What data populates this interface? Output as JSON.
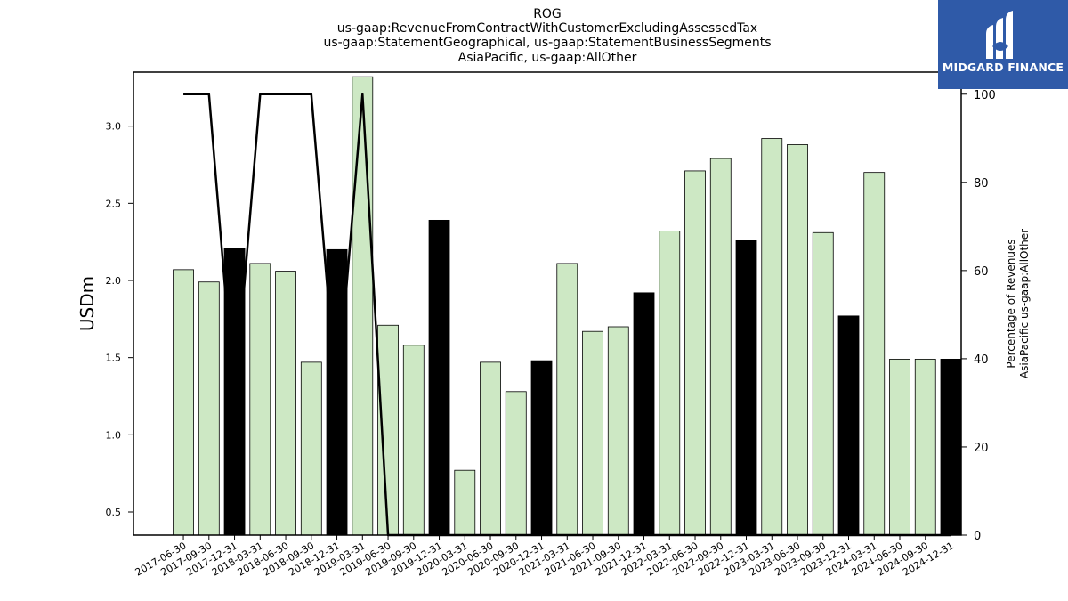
{
  "chart_data": {
    "type": "bar",
    "title_lines": [
      "ROG",
      "us-gaap:RevenueFromContractWithCustomerExcludingAssessedTax",
      "us-gaap:StatementGeographical, us-gaap:StatementBusinessSegments",
      "AsiaPacific, us-gaap:AllOther"
    ],
    "ylabel": "USDm",
    "ylabel_right_lines": [
      "Percentage of Revenues",
      "AsiaPacific us-gaap:AllOther"
    ],
    "categories": [
      "2017-06-30",
      "2017-09-30",
      "2017-12-31",
      "2018-03-31",
      "2018-06-30",
      "2018-09-30",
      "2018-12-31",
      "2019-03-31",
      "2019-06-30",
      "2019-09-30",
      "2019-12-31",
      "2020-03-31",
      "2020-06-30",
      "2020-09-30",
      "2020-12-31",
      "2021-03-31",
      "2021-06-30",
      "2021-09-30",
      "2021-12-31",
      "2022-03-31",
      "2022-06-30",
      "2022-09-30",
      "2022-12-31",
      "2023-03-31",
      "2023-06-30",
      "2023-09-30",
      "2023-12-31",
      "2024-03-31",
      "2024-06-30",
      "2024-09-30",
      "2024-12-31"
    ],
    "values": [
      2.07,
      1.99,
      2.21,
      2.11,
      2.06,
      1.47,
      2.2,
      3.32,
      1.71,
      1.58,
      2.39,
      0.77,
      1.47,
      1.28,
      1.48,
      2.11,
      1.67,
      1.7,
      1.92,
      2.32,
      2.71,
      2.79,
      2.26,
      2.92,
      2.88,
      2.31,
      1.77,
      2.7,
      1.49,
      1.49,
      1.49
    ],
    "bar_colors": [
      "#cde8c4",
      "#cde8c4",
      "#000000",
      "#cde8c4",
      "#cde8c4",
      "#cde8c4",
      "#000000",
      "#cde8c4",
      "#cde8c4",
      "#cde8c4",
      "#000000",
      "#cde8c4",
      "#cde8c4",
      "#cde8c4",
      "#000000",
      "#cde8c4",
      "#cde8c4",
      "#cde8c4",
      "#000000",
      "#cde8c4",
      "#cde8c4",
      "#cde8c4",
      "#000000",
      "#cde8c4",
      "#cde8c4",
      "#cde8c4",
      "#000000",
      "#cde8c4",
      "#cde8c4",
      "#cde8c4",
      "#000000"
    ],
    "line_series": {
      "axis": "right",
      "values": [
        100,
        100,
        30,
        100,
        100,
        100,
        30,
        100,
        0,
        0,
        0,
        0,
        0,
        0,
        0,
        0,
        0,
        0,
        0,
        0,
        0,
        0,
        0,
        0,
        0,
        0,
        0,
        0,
        0,
        0,
        0
      ],
      "color": "#000000"
    },
    "ylim": [
      0.35,
      3.35
    ],
    "yticks": [
      0.5,
      1.0,
      1.5,
      2.0,
      2.5,
      3.0
    ],
    "ylim_right": [
      0,
      105
    ],
    "yticks_right": [
      0,
      20,
      40,
      60,
      80,
      100
    ],
    "grid": false,
    "legend": "none"
  },
  "logo": {
    "text": "MIDGARD FINANCE",
    "background": "#2f5aa8"
  }
}
